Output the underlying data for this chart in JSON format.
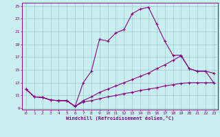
{
  "background_color": "#c8eef0",
  "line_color": "#880088",
  "grid_color": "#a0cccc",
  "xlabel": "Windchill (Refroidissement éolien,°C)",
  "xlim": [
    -0.5,
    23.5
  ],
  "ylim": [
    8.8,
    25.5
  ],
  "xticks": [
    0,
    1,
    2,
    3,
    4,
    5,
    6,
    7,
    8,
    9,
    10,
    11,
    12,
    13,
    14,
    15,
    16,
    17,
    18,
    19,
    20,
    21,
    22,
    23
  ],
  "yticks": [
    9,
    11,
    13,
    15,
    17,
    19,
    21,
    23,
    25
  ],
  "line1_x": [
    0,
    1,
    2,
    3,
    4,
    5,
    6,
    7,
    8,
    9,
    10,
    11,
    12,
    13,
    14,
    15,
    16,
    17,
    18,
    19,
    20,
    21,
    22,
    23
  ],
  "line1_y": [
    12.0,
    10.8,
    10.7,
    10.3,
    10.2,
    10.2,
    9.3,
    13.0,
    14.8,
    19.8,
    19.5,
    20.8,
    21.3,
    23.8,
    24.5,
    24.8,
    22.2,
    19.5,
    17.3,
    17.3,
    15.2,
    14.8,
    14.8,
    13.0
  ],
  "line2_x": [
    0,
    1,
    2,
    3,
    4,
    5,
    6,
    7,
    8,
    9,
    10,
    11,
    12,
    13,
    14,
    15,
    16,
    17,
    18,
    19,
    20,
    21,
    22,
    23
  ],
  "line2_y": [
    12.0,
    10.8,
    10.7,
    10.3,
    10.2,
    10.2,
    9.3,
    10.2,
    10.8,
    11.5,
    12.0,
    12.5,
    13.0,
    13.5,
    14.0,
    14.5,
    15.2,
    15.8,
    16.5,
    17.2,
    15.2,
    14.8,
    14.8,
    14.5
  ],
  "line3_x": [
    0,
    1,
    2,
    3,
    4,
    5,
    6,
    7,
    8,
    9,
    10,
    11,
    12,
    13,
    14,
    15,
    16,
    17,
    18,
    19,
    20,
    21,
    22,
    23
  ],
  "line3_y": [
    12.0,
    10.8,
    10.7,
    10.3,
    10.2,
    10.2,
    9.3,
    10.0,
    10.2,
    10.5,
    10.8,
    11.0,
    11.3,
    11.5,
    11.8,
    12.0,
    12.2,
    12.5,
    12.7,
    12.9,
    13.0,
    13.0,
    13.0,
    13.0
  ]
}
